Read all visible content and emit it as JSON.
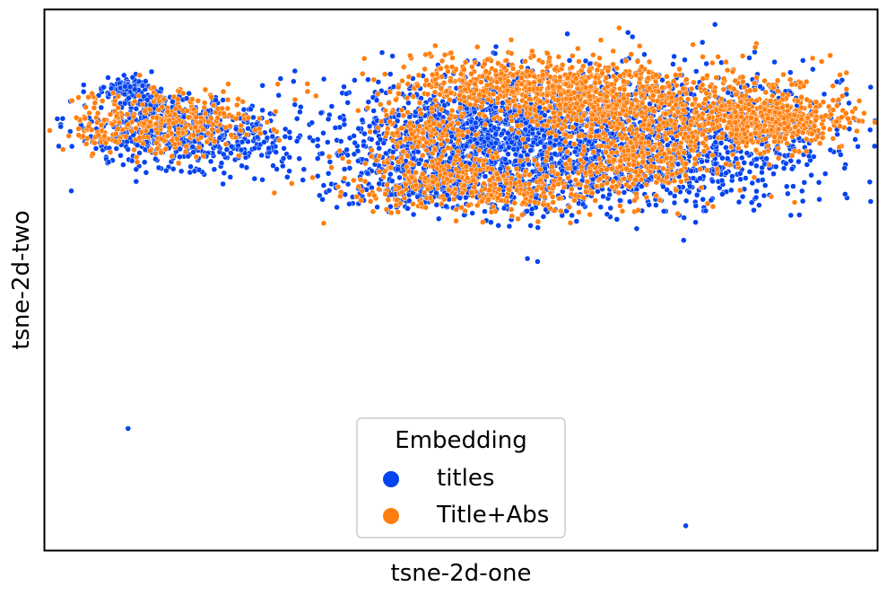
{
  "chart_data": {
    "type": "scatter",
    "title": "",
    "xlabel": "tsne-2d-one",
    "ylabel": "tsne-2d-two",
    "xlim": [
      -100,
      100
    ],
    "ylim": [
      -100,
      100
    ],
    "xticks_visible": false,
    "yticks_visible": false,
    "grid": false,
    "legend": {
      "title": "Embedding",
      "placement": "lower center"
    },
    "series": [
      {
        "name": "titles",
        "color": "#0343f0",
        "clusters": [
          {
            "center": [
              -80,
              70
            ],
            "spread": [
              3,
              2.5
            ],
            "count": 120
          },
          {
            "center": [
              -72,
              64
            ],
            "spread": [
              3,
              2.5
            ],
            "count": 70
          },
          {
            "center": [
              -70,
              54
            ],
            "spread": [
              12,
              7
            ],
            "count": 420
          },
          {
            "center": [
              -55,
              53
            ],
            "spread": [
              10,
              6
            ],
            "count": 150
          },
          {
            "center": [
              0,
              53
            ],
            "spread": [
              12,
              10
            ],
            "count": 620
          },
          {
            "center": [
              25,
              56
            ],
            "spread": [
              24,
              12
            ],
            "count": 900
          },
          {
            "center": [
              55,
              53
            ],
            "spread": [
              20,
              11
            ],
            "count": 600
          },
          {
            "center": [
              -10,
              33
            ],
            "spread": [
              10,
              4
            ],
            "count": 150
          },
          {
            "center": [
              25,
              40
            ],
            "spread": [
              26,
              9
            ],
            "count": 500
          }
        ],
        "outliers": [
          [
            -80,
            -55
          ],
          [
            54,
            -91
          ],
          [
            -33,
            35
          ],
          [
            -38,
            37
          ]
        ]
      },
      {
        "name": "Title+Abs",
        "color": "#ff7f0e",
        "clusters": [
          {
            "center": [
              -68,
              58
            ],
            "spread": [
              10,
              6
            ],
            "count": 280
          },
          {
            "center": [
              -87,
              57
            ],
            "spread": [
              3,
              5
            ],
            "count": 60
          },
          {
            "center": [
              10,
              72
            ],
            "spread": [
              15,
              6
            ],
            "count": 430
          },
          {
            "center": [
              30,
              68
            ],
            "spread": [
              10,
              7
            ],
            "count": 300
          },
          {
            "center": [
              55,
              62
            ],
            "spread": [
              18,
              9
            ],
            "count": 650
          },
          {
            "center": [
              75,
              59
            ],
            "spread": [
              9,
              4
            ],
            "count": 320
          },
          {
            "center": [
              -5,
              38
            ],
            "spread": [
              12,
              6
            ],
            "count": 200
          },
          {
            "center": [
              15,
              34
            ],
            "spread": [
              18,
              5
            ],
            "count": 250
          },
          {
            "center": [
              40,
              44
            ],
            "spread": [
              10,
              6
            ],
            "count": 200
          },
          {
            "center": [
              -10,
              55
            ],
            "spread": [
              6,
              4
            ],
            "count": 120
          }
        ],
        "outliers": [
          [
            -29,
            31
          ],
          [
            -15,
            69
          ]
        ]
      }
    ]
  }
}
